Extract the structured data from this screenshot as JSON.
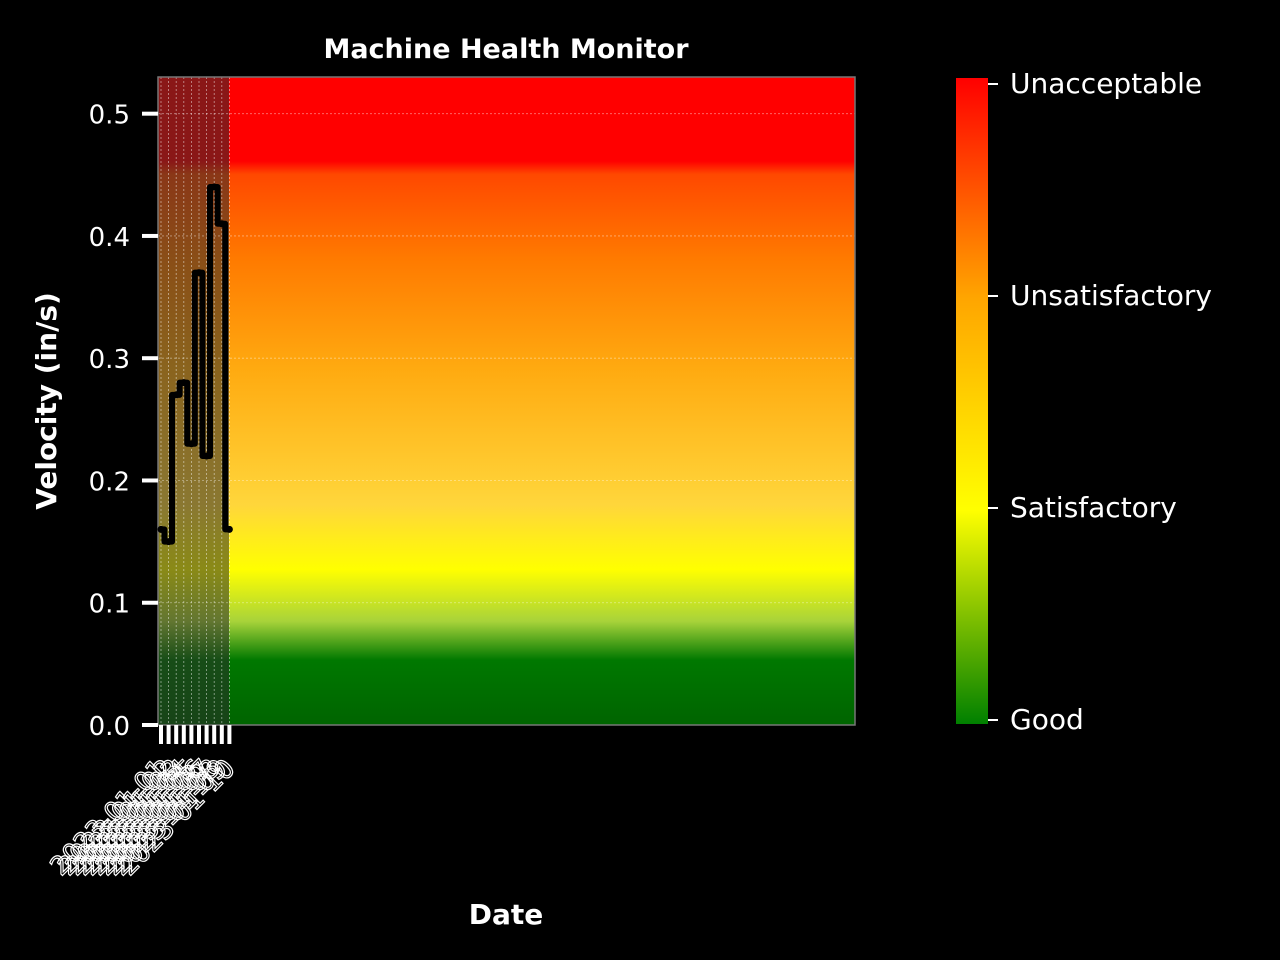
{
  "chart_data": {
    "type": "line",
    "title": "Machine Health Monitor",
    "xlabel": "Date",
    "ylabel": "Velocity (in/s)",
    "ylim": [
      0.0,
      0.53
    ],
    "y_ticks": [
      "0.0",
      "0.1",
      "0.2",
      "0.3",
      "0.4",
      "0.5"
    ],
    "grid": true,
    "x": [
      "2023-01-01",
      "2023-01-02",
      "2023-01-03",
      "2023-01-04",
      "2023-01-05",
      "2023-01-06",
      "2023-01-07",
      "2023-01-08",
      "2023-01-09",
      "2023-01-10"
    ],
    "series": [
      {
        "values": [
          0.16,
          0.15,
          0.27,
          0.28,
          0.23,
          0.37,
          0.22,
          0.44,
          0.41,
          0.16
        ]
      }
    ],
    "line_color": "#000000",
    "background_zones": [
      {
        "label": "Good",
        "upper": 0.06,
        "color": "#006400"
      },
      {
        "label": "Satisfactory",
        "upper": 0.13,
        "color": "#ffff00"
      },
      {
        "label": "Unsatisfactory",
        "upper": 0.32,
        "color": "#ff8c00"
      },
      {
        "label": "Unacceptable",
        "upper": 0.53,
        "color": "#ff0000"
      }
    ],
    "colorbar_labels": [
      "Good",
      "Satisfactory",
      "Unsatisfactory",
      "Unacceptable"
    ]
  }
}
